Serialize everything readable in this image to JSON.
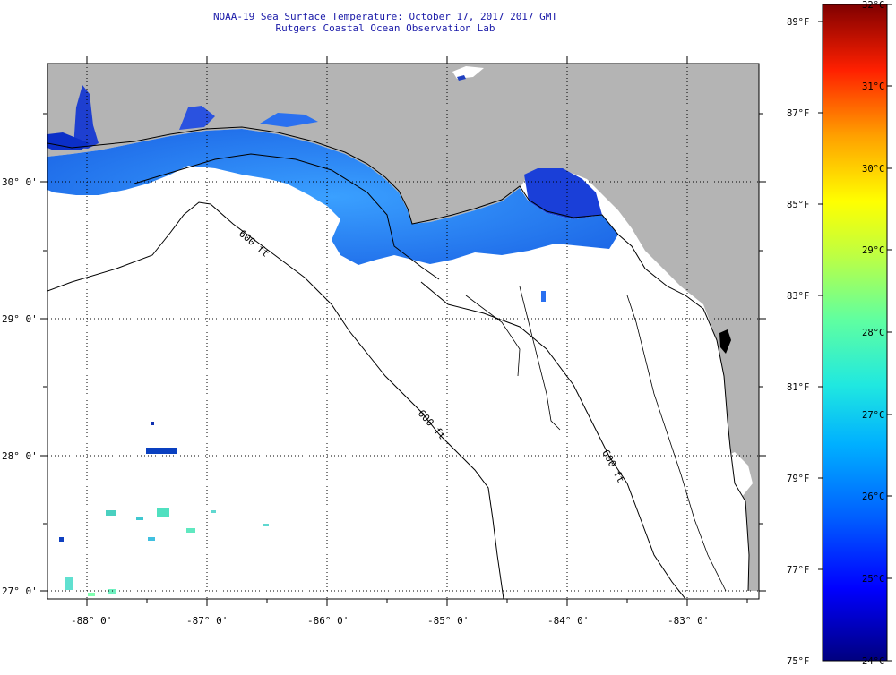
{
  "title": {
    "line1": "NOAA-19 Sea Surface Temperature:  October 17, 2017 2017 GMT",
    "line2": "Rutgers Coastal Ocean Observation Lab"
  },
  "map": {
    "lon_labels": [
      "-88° 0'",
      "-87° 0'",
      "-86° 0'",
      "-85° 0'",
      "-84° 0'",
      "-83° 0'"
    ],
    "lat_labels": [
      "30° 0'",
      "29° 0'",
      "28° 0'",
      "27° 0'"
    ],
    "isobath_labels": [
      "600 ft",
      "600 ft",
      "600 ft"
    ],
    "land_color": "#b4b4b4",
    "no_data_color": "#ffffff"
  },
  "colorbar": {
    "fahrenheit": [
      "89°F",
      "87°F",
      "85°F",
      "83°F",
      "81°F",
      "79°F",
      "77°F",
      "75°F"
    ],
    "celsius": [
      "32°C",
      "31°C",
      "30°C",
      "29°C",
      "28°C",
      "27°C",
      "26°C",
      "25°C",
      "24°C"
    ],
    "gradient": [
      "#00007f",
      "#0000ff",
      "#0080ff",
      "#00e0ff",
      "#40ffc0",
      "#c0ff40",
      "#ffff00",
      "#ff8000",
      "#ff0000",
      "#7f0000"
    ]
  }
}
